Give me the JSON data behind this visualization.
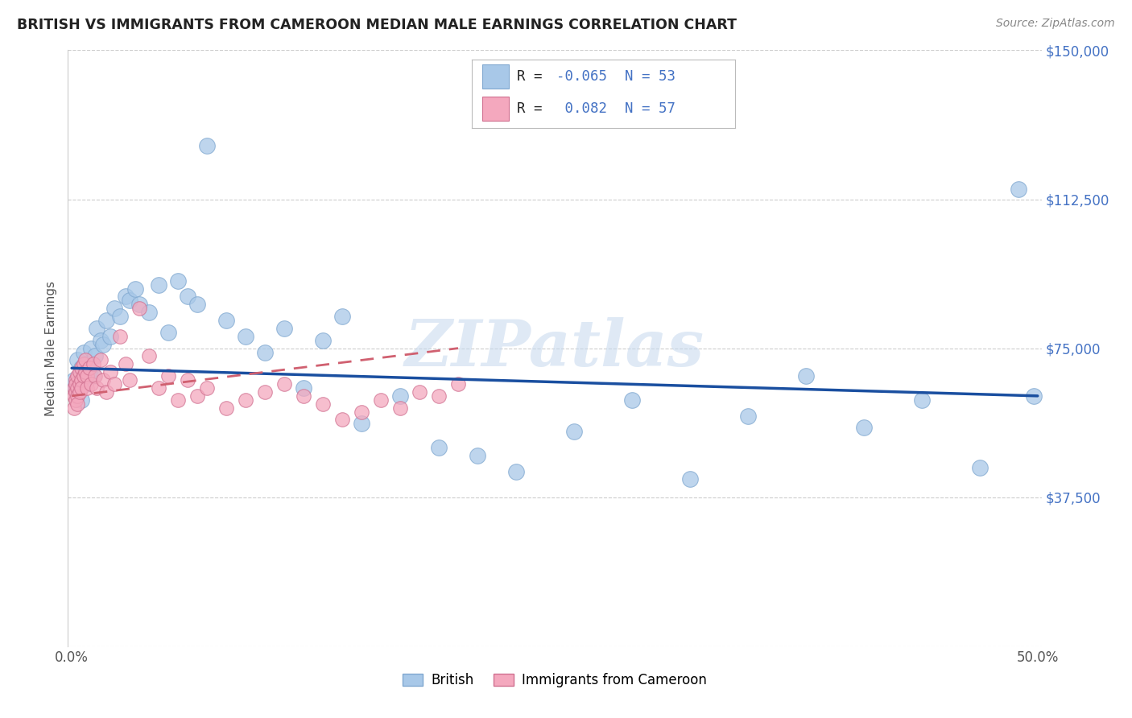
{
  "title": "BRITISH VS IMMIGRANTS FROM CAMEROON MEDIAN MALE EARNINGS CORRELATION CHART",
  "source": "Source: ZipAtlas.com",
  "ylabel": "Median Male Earnings",
  "xlim": [
    -0.002,
    0.502
  ],
  "ylim": [
    0,
    150000
  ],
  "yticks": [
    0,
    37500,
    75000,
    112500,
    150000
  ],
  "ytick_labels": [
    "",
    "$37,500",
    "$75,000",
    "$112,500",
    "$150,000"
  ],
  "xticks": [
    0.0,
    0.1,
    0.2,
    0.3,
    0.4,
    0.5
  ],
  "xtick_labels": [
    "0.0%",
    "",
    "",
    "",
    "",
    "50.0%"
  ],
  "legend_r_british": "-0.065",
  "legend_n_british": "53",
  "legend_r_cameroon": "0.082",
  "legend_n_cameroon": "57",
  "british_color": "#a8c8e8",
  "cameroon_color": "#f4a8be",
  "trendline_british_color": "#1a4fa0",
  "trendline_cameroon_color": "#d06070",
  "watermark": "ZIPatlas",
  "british_x": [
    0.001,
    0.002,
    0.003,
    0.004,
    0.005,
    0.005,
    0.006,
    0.007,
    0.008,
    0.009,
    0.01,
    0.011,
    0.012,
    0.013,
    0.015,
    0.016,
    0.018,
    0.02,
    0.022,
    0.025,
    0.028,
    0.03,
    0.033,
    0.035,
    0.04,
    0.045,
    0.05,
    0.055,
    0.06,
    0.065,
    0.07,
    0.08,
    0.09,
    0.1,
    0.11,
    0.12,
    0.13,
    0.14,
    0.15,
    0.17,
    0.19,
    0.21,
    0.23,
    0.26,
    0.29,
    0.32,
    0.35,
    0.38,
    0.41,
    0.44,
    0.47,
    0.49,
    0.498
  ],
  "british_y": [
    67000,
    65000,
    72000,
    68000,
    62000,
    70000,
    74000,
    66000,
    71000,
    69000,
    75000,
    68000,
    73000,
    80000,
    77000,
    76000,
    82000,
    78000,
    85000,
    83000,
    88000,
    87000,
    90000,
    86000,
    84000,
    91000,
    79000,
    92000,
    88000,
    86000,
    126000,
    82000,
    78000,
    74000,
    80000,
    65000,
    77000,
    83000,
    56000,
    63000,
    50000,
    48000,
    44000,
    54000,
    62000,
    42000,
    58000,
    68000,
    55000,
    62000,
    45000,
    115000,
    63000
  ],
  "cameroon_x": [
    0.001,
    0.001,
    0.001,
    0.002,
    0.002,
    0.002,
    0.002,
    0.003,
    0.003,
    0.003,
    0.003,
    0.004,
    0.004,
    0.004,
    0.005,
    0.005,
    0.005,
    0.006,
    0.006,
    0.007,
    0.007,
    0.008,
    0.008,
    0.009,
    0.01,
    0.011,
    0.012,
    0.013,
    0.015,
    0.016,
    0.018,
    0.02,
    0.022,
    0.025,
    0.028,
    0.03,
    0.035,
    0.04,
    0.045,
    0.05,
    0.055,
    0.06,
    0.065,
    0.07,
    0.08,
    0.09,
    0.1,
    0.11,
    0.12,
    0.13,
    0.14,
    0.15,
    0.16,
    0.17,
    0.18,
    0.19,
    0.2
  ],
  "cameroon_y": [
    65000,
    63000,
    60000,
    67000,
    64000,
    66000,
    62000,
    68000,
    65000,
    63000,
    61000,
    69000,
    66000,
    64000,
    70000,
    67000,
    65000,
    71000,
    68000,
    72000,
    69000,
    68000,
    65000,
    70000,
    66000,
    71000,
    68000,
    65000,
    72000,
    67000,
    64000,
    69000,
    66000,
    78000,
    71000,
    67000,
    85000,
    73000,
    65000,
    68000,
    62000,
    67000,
    63000,
    65000,
    60000,
    62000,
    64000,
    66000,
    63000,
    61000,
    57000,
    59000,
    62000,
    60000,
    64000,
    63000,
    66000
  ],
  "british_trendline_x": [
    0.0,
    0.5
  ],
  "british_trendline_y": [
    70000,
    63000
  ],
  "cameroon_trendline_x": [
    0.0,
    0.2
  ],
  "cameroon_trendline_y": [
    63000,
    75000
  ]
}
